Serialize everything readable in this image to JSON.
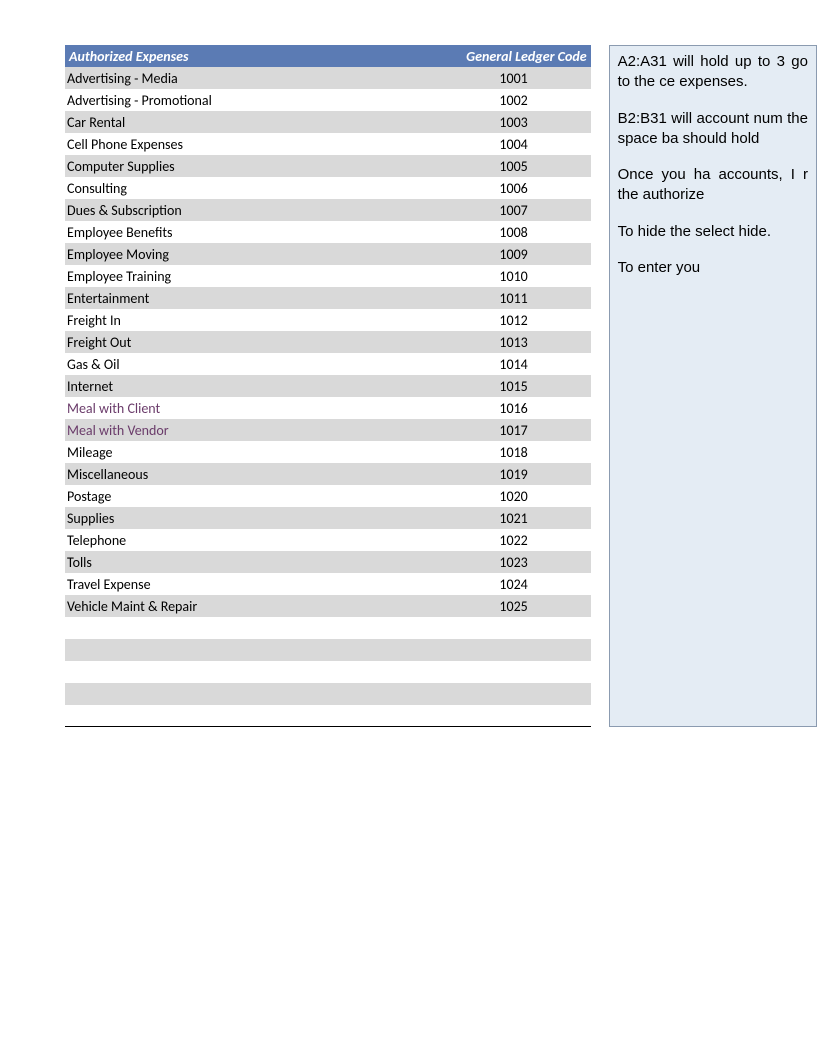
{
  "table": {
    "header": {
      "expense_label": "Authorized Expenses",
      "code_label": "General Ledger Code"
    },
    "header_bg": "#5b7bb4",
    "header_text_color": "#ffffff",
    "row_odd_bg": "#d9d9d9",
    "row_even_bg": "#ffffff",
    "meal_text_color": "#6a3b6a",
    "rows": [
      {
        "expense": "Advertising - Media",
        "code": "1001",
        "meal": false
      },
      {
        "expense": "Advertising - Promotional",
        "code": "1002",
        "meal": false
      },
      {
        "expense": "Car Rental",
        "code": "1003",
        "meal": false
      },
      {
        "expense": "Cell Phone Expenses",
        "code": "1004",
        "meal": false
      },
      {
        "expense": "Computer Supplies",
        "code": "1005",
        "meal": false
      },
      {
        "expense": "Consulting",
        "code": "1006",
        "meal": false
      },
      {
        "expense": "Dues & Subscription",
        "code": "1007",
        "meal": false
      },
      {
        "expense": "Employee Benefits",
        "code": "1008",
        "meal": false
      },
      {
        "expense": "Employee Moving",
        "code": "1009",
        "meal": false
      },
      {
        "expense": "Employee Training",
        "code": "1010",
        "meal": false
      },
      {
        "expense": "Entertainment",
        "code": "1011",
        "meal": false
      },
      {
        "expense": "Freight In",
        "code": "1012",
        "meal": false
      },
      {
        "expense": "Freight Out",
        "code": "1013",
        "meal": false
      },
      {
        "expense": "Gas & Oil",
        "code": "1014",
        "meal": false
      },
      {
        "expense": "Internet",
        "code": "1015",
        "meal": false
      },
      {
        "expense": "Meal with Client",
        "code": "1016",
        "meal": true
      },
      {
        "expense": "Meal with Vendor",
        "code": "1017",
        "meal": true
      },
      {
        "expense": "Mileage",
        "code": "1018",
        "meal": false
      },
      {
        "expense": "Miscellaneous",
        "code": "1019",
        "meal": false
      },
      {
        "expense": "Postage",
        "code": "1020",
        "meal": false
      },
      {
        "expense": "Supplies",
        "code": "1021",
        "meal": false
      },
      {
        "expense": "Telephone",
        "code": "1022",
        "meal": false
      },
      {
        "expense": "Tolls",
        "code": "1023",
        "meal": false
      },
      {
        "expense": "Travel Expense",
        "code": "1024",
        "meal": false
      },
      {
        "expense": "Vehicle Maint & Repair",
        "code": "1025",
        "meal": false
      }
    ]
  },
  "note": {
    "bg_color": "#e4ecf4",
    "border_color": "#8b9bb0",
    "p1": "A2:A31 will hold up to 3 go to the ce expenses.",
    "p2": "B2:B31 will account num the space ba should hold",
    "p3": "Once you ha accounts, I r the authorize",
    "p4": "To hide the select hide.",
    "p5": "To enter you"
  }
}
